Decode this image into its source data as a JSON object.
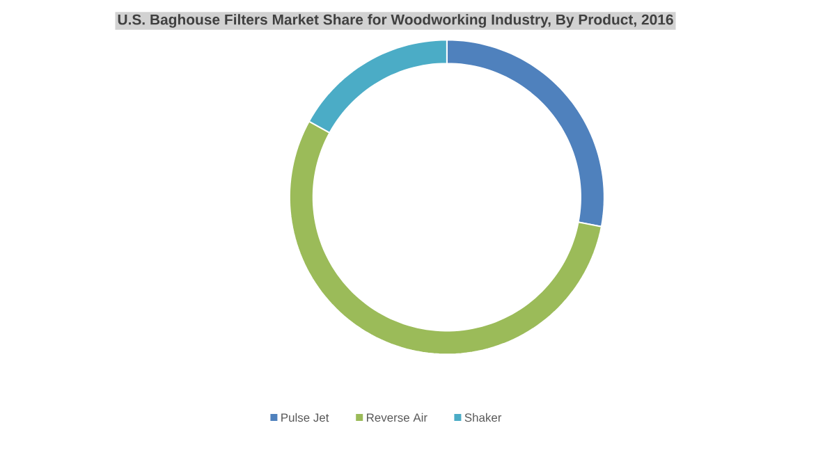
{
  "chart_data": {
    "type": "donut",
    "title": "U.S. Baghouse Filters Market Share for Woodworking Industry, By Product, 2016",
    "categories": [
      "Pulse Jet",
      "Reverse Air",
      "Shaker"
    ],
    "values": [
      28,
      55,
      17
    ],
    "colors": [
      "#4f81bd",
      "#9bbb59",
      "#4bacc6"
    ],
    "legend": "bottom"
  }
}
